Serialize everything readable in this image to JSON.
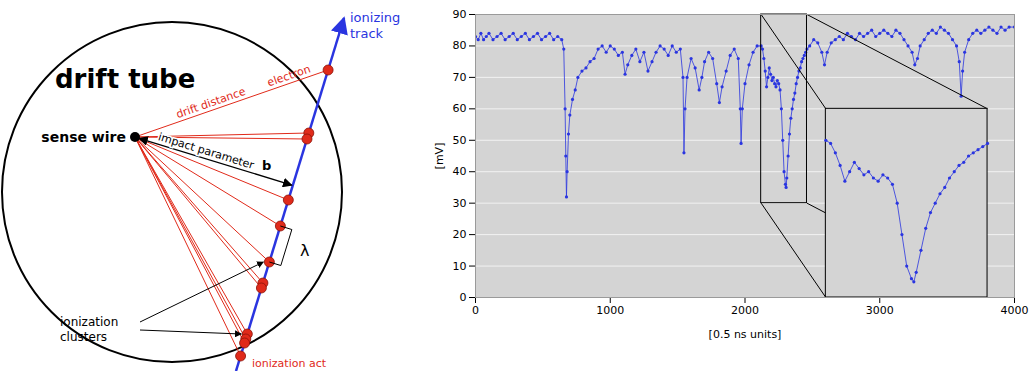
{
  "diagram": {
    "title": "drift tube",
    "track_label": "ionizing track",
    "wire_label": "sense wire",
    "electron_label": "electron",
    "drift_label": "drift distance",
    "impact_label": "impact parameter",
    "impact_symbol": "b",
    "spacing_symbol": "λ",
    "clusters_label": "ionization clusters",
    "act_label": "ionization act"
  },
  "chart_data": {
    "type": "line",
    "xlabel": "[0.5 ns units]",
    "ylabel": "[mV]",
    "xlim": [
      0,
      4000
    ],
    "xticks": [
      0,
      1000,
      2000,
      3000,
      4000
    ],
    "ylim": [
      0,
      90
    ],
    "yticks": [
      0,
      10,
      20,
      30,
      40,
      50,
      60,
      70,
      80,
      90
    ],
    "grid": "y",
    "color": "#2a35e0",
    "marker": "circle",
    "x": [
      0,
      20,
      40,
      60,
      80,
      100,
      130,
      160,
      190,
      220,
      250,
      280,
      310,
      340,
      370,
      400,
      430,
      460,
      490,
      520,
      550,
      580,
      610,
      640,
      655,
      665,
      670,
      675,
      680,
      690,
      700,
      720,
      740,
      760,
      790,
      820,
      850,
      880,
      910,
      940,
      970,
      1000,
      1030,
      1060,
      1090,
      1110,
      1130,
      1160,
      1190,
      1220,
      1250,
      1280,
      1310,
      1340,
      1370,
      1400,
      1430,
      1460,
      1490,
      1520,
      1540,
      1547,
      1555,
      1570,
      1600,
      1630,
      1660,
      1680,
      1700,
      1730,
      1760,
      1790,
      1810,
      1830,
      1860,
      1890,
      1920,
      1950,
      1965,
      1971,
      1980,
      2000,
      2030,
      2060,
      2090,
      2120,
      2130,
      2140,
      2150,
      2160,
      2170,
      2180,
      2190,
      2200,
      2210,
      2220,
      2230,
      2240,
      2250,
      2260,
      2270,
      2280,
      2290,
      2300,
      2305,
      2310,
      2320,
      2330,
      2340,
      2350,
      2360,
      2370,
      2380,
      2390,
      2400,
      2410,
      2420,
      2430,
      2440,
      2450,
      2460,
      2480,
      2510,
      2540,
      2570,
      2590,
      2610,
      2640,
      2670,
      2700,
      2730,
      2760,
      2790,
      2820,
      2850,
      2880,
      2910,
      2940,
      2970,
      3000,
      3030,
      3060,
      3090,
      3120,
      3150,
      3180,
      3210,
      3240,
      3260,
      3280,
      3300,
      3330,
      3360,
      3390,
      3420,
      3450,
      3480,
      3510,
      3540,
      3570,
      3590,
      3604,
      3615,
      3630,
      3660,
      3690,
      3720,
      3750,
      3780,
      3810,
      3840,
      3870,
      3900,
      3930,
      3960,
      4000
    ],
    "values": [
      83,
      82,
      84,
      82,
      83,
      84,
      82,
      83,
      84,
      82,
      83,
      84,
      82,
      83,
      84,
      82,
      83,
      84,
      82,
      83,
      84,
      82,
      83,
      82,
      79,
      60,
      45,
      32,
      40,
      52,
      58,
      63,
      66,
      70,
      72,
      73,
      75,
      76,
      79,
      80,
      78,
      80,
      79,
      77,
      78,
      71,
      74,
      77,
      79,
      75,
      78,
      72,
      75,
      78,
      80,
      79,
      77,
      80,
      78,
      79,
      70,
      46,
      60,
      70,
      76,
      73,
      66,
      70,
      75,
      78,
      76,
      68,
      62,
      67,
      72,
      77,
      79,
      76,
      60,
      49,
      60,
      68,
      74,
      78,
      80,
      80,
      79,
      76,
      72,
      67,
      70,
      73,
      71,
      69,
      70,
      68,
      67,
      69,
      68,
      66,
      60,
      50,
      40,
      36,
      35,
      38,
      45,
      52,
      57,
      60,
      63,
      65,
      68,
      70,
      72,
      73,
      75,
      76,
      77,
      78,
      79,
      80,
      82,
      81,
      78,
      74,
      78,
      81,
      82,
      83,
      82,
      84,
      83,
      82,
      84,
      83,
      84,
      85,
      83,
      84,
      85,
      84,
      83,
      85,
      84,
      82,
      80,
      78,
      74,
      76,
      80,
      82,
      84,
      85,
      84,
      86,
      85,
      84,
      82,
      80,
      75,
      64,
      72,
      78,
      82,
      84,
      85,
      84,
      85,
      86,
      85,
      84,
      86,
      85,
      86,
      86
    ],
    "inset": {
      "from": {
        "x": [
          2120,
          2460
        ],
        "y": [
          30,
          90
        ]
      },
      "to": {
        "x": [
          2600,
          3800
        ],
        "y": [
          0,
          60
        ]
      }
    }
  }
}
